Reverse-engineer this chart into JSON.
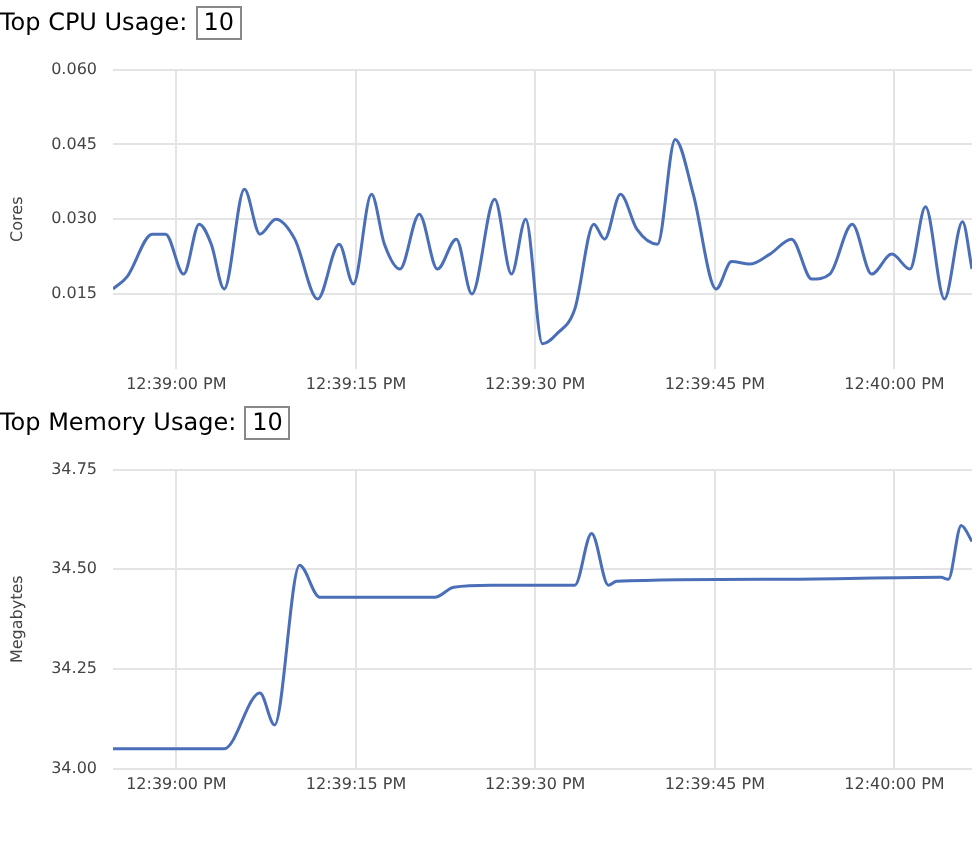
{
  "chart_data": [
    {
      "type": "line",
      "title": "Top CPU Usage:",
      "annotations": [
        "10"
      ],
      "ylabel": "Cores",
      "grid": true,
      "legend": false,
      "marker": "none",
      "line_style": "solid",
      "xlim": [
        12.64853,
        12.66847
      ],
      "xticks": [
        {
          "value": 12.65,
          "label": "12:39:00 PM"
        },
        {
          "value": 12.65417,
          "label": "12:39:15 PM"
        },
        {
          "value": 12.65833,
          "label": "12:39:30 PM"
        },
        {
          "value": 12.6625,
          "label": "12:39:45 PM"
        },
        {
          "value": 12.66667,
          "label": "12:40:00 PM"
        }
      ],
      "ylim": [
        0,
        0.06
      ],
      "yticks": [
        {
          "value": 0.015,
          "label": "0.015"
        },
        {
          "value": 0.03,
          "label": "0.030"
        },
        {
          "value": 0.045,
          "label": "0.045"
        },
        {
          "value": 0.06,
          "label": "0.060"
        }
      ],
      "series": [
        {
          "color": "#4a6fb8",
          "x": [
            12.64853,
            12.64886,
            12.64944,
            12.64975,
            12.65017,
            12.65053,
            12.65081,
            12.65111,
            12.65158,
            12.65194,
            12.65231,
            12.65275,
            12.65328,
            12.65378,
            12.65411,
            12.65453,
            12.65483,
            12.65519,
            12.65564,
            12.65606,
            12.6565,
            12.65686,
            12.65739,
            12.65778,
            12.65811,
            12.6585,
            12.65883,
            12.65925,
            12.65969,
            12.65994,
            12.66031,
            12.66069,
            12.66117,
            12.66158,
            12.662,
            12.66253,
            12.66289,
            12.66331,
            12.66378,
            12.66428,
            12.66475,
            12.66517,
            12.66569,
            12.66614,
            12.66661,
            12.66703,
            12.66739,
            12.66783,
            12.66825,
            12.66847
          ],
          "values": [
            0.016,
            0.0185,
            0.027,
            0.027,
            0.019,
            0.029,
            0.025,
            0.016,
            0.036,
            0.027,
            0.03,
            0.026,
            0.014,
            0.025,
            0.017,
            0.035,
            0.025,
            0.02,
            0.031,
            0.02,
            0.026,
            0.015,
            0.034,
            0.019,
            0.03,
            0.005,
            0.007,
            0.012,
            0.029,
            0.026,
            0.035,
            0.028,
            0.025,
            0.046,
            0.035,
            0.016,
            0.0215,
            0.021,
            0.023,
            0.026,
            0.018,
            0.019,
            0.029,
            0.019,
            0.023,
            0.02,
            0.0325,
            0.014,
            0.0295,
            0.02
          ]
        }
      ]
    },
    {
      "type": "line",
      "title": "Top Memory Usage:",
      "annotations": [
        "10"
      ],
      "ylabel": "Megabytes",
      "grid": true,
      "legend": false,
      "marker": "none",
      "line_style": "solid",
      "xlim": [
        12.64853,
        12.66847
      ],
      "xticks": [
        {
          "value": 12.65,
          "label": "12:39:00 PM"
        },
        {
          "value": 12.65417,
          "label": "12:39:15 PM"
        },
        {
          "value": 12.65833,
          "label": "12:39:30 PM"
        },
        {
          "value": 12.6625,
          "label": "12:39:45 PM"
        },
        {
          "value": 12.66667,
          "label": "12:40:00 PM"
        }
      ],
      "ylim": [
        34.0,
        34.75
      ],
      "yticks": [
        {
          "value": 34.0,
          "label": "34.00"
        },
        {
          "value": 34.25,
          "label": "34.25"
        },
        {
          "value": 34.5,
          "label": "34.50"
        },
        {
          "value": 34.75,
          "label": "34.75"
        }
      ],
      "series": [
        {
          "color": "#4a6fb8",
          "x": [
            12.64853,
            12.65111,
            12.65194,
            12.65228,
            12.65286,
            12.65333,
            12.656,
            12.65644,
            12.65731,
            12.65925,
            12.65964,
            12.66003,
            12.66022,
            12.66411,
            12.66775,
            12.66792,
            12.66822,
            12.66847
          ],
          "values": [
            34.05,
            34.05,
            34.19,
            34.11,
            34.51,
            34.43,
            34.43,
            34.455,
            34.46,
            34.46,
            34.59,
            34.46,
            34.47,
            34.475,
            34.48,
            34.475,
            34.61,
            34.57
          ]
        }
      ]
    }
  ]
}
